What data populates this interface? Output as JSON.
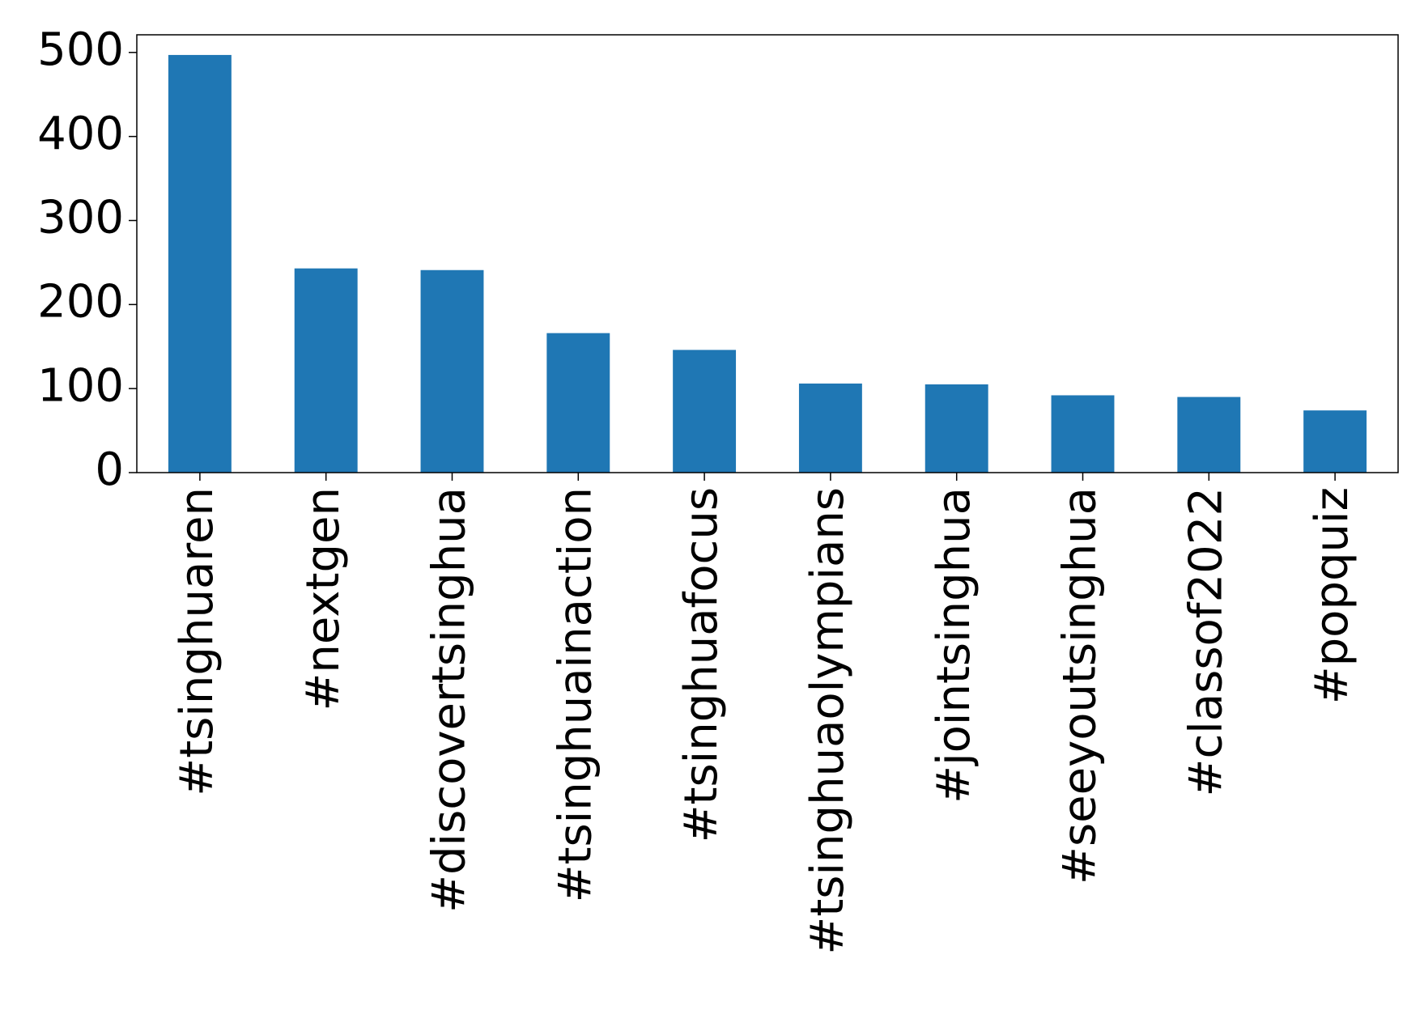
{
  "chart_data": {
    "type": "bar",
    "categories": [
      "#tsinghuaren",
      "#nextgen",
      "#discovertsinghua",
      "#tsinghuainaction",
      "#tsinghuafocus",
      "#tsinghuaolympians",
      "#jointsinghua",
      "#seeyoutsinghua",
      "#classof2022",
      "#popquiz"
    ],
    "values": [
      497,
      243,
      241,
      166,
      146,
      106,
      105,
      92,
      90,
      74
    ],
    "color": "#1f77b4",
    "ylim": [
      0,
      521
    ],
    "yticks": [
      0,
      100,
      200,
      300,
      400,
      500
    ]
  }
}
